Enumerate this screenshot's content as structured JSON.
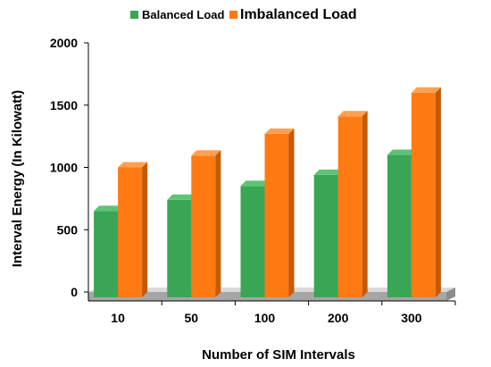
{
  "chart_data": {
    "type": "bar",
    "categories": [
      "10",
      "50",
      "100",
      "200",
      "300"
    ],
    "series": [
      {
        "name": "Balanced Load",
        "values": [
          650,
          740,
          850,
          940,
          1100
        ]
      },
      {
        "name": "Imbalanced Load",
        "values": [
          1000,
          1095,
          1270,
          1410,
          1600
        ]
      }
    ],
    "title": "",
    "xlabel": "Number of SIM Intervals",
    "ylabel": "Interval Energy (In Kilowatt)",
    "ylim": [
      0,
      2000
    ],
    "yticks": [
      "0",
      "500",
      "1000",
      "1500",
      "2000"
    ],
    "grid": false,
    "legend_position": "top",
    "colors": {
      "Balanced Load": {
        "front": "#3aa655",
        "top": "#5cc474",
        "side": "#237a3a"
      },
      "Imbalanced Load": {
        "front": "#ff7a12",
        "top": "#ffa050",
        "side": "#c45a05"
      },
      "floor_top": "#d9d9d9",
      "floor_front": "#a6a6a6"
    }
  }
}
